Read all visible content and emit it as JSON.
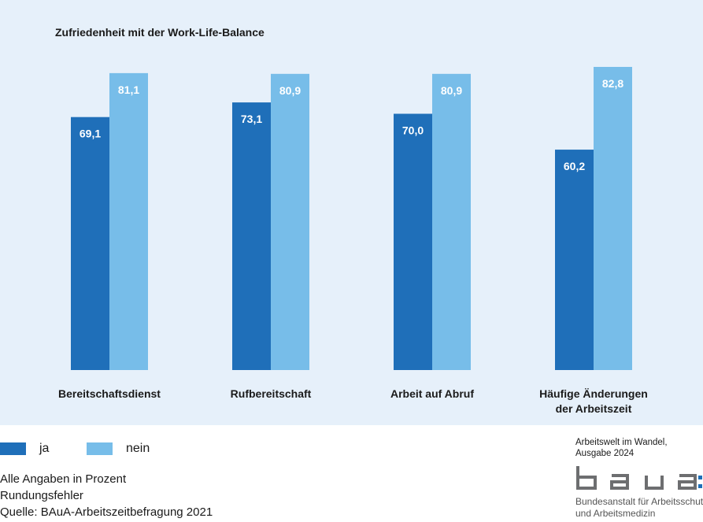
{
  "chart_data": {
    "type": "bar",
    "title": "Zufriedenheit mit der Work-Life-Balance",
    "categories": [
      "Bereitschaftsdienst",
      "Rufbereitschaft",
      "Arbeit auf Abruf",
      "Häufige Änderungen der Arbeitszeit"
    ],
    "category_lines": [
      [
        "Bereitschaftsdienst"
      ],
      [
        "Rufbereitschaft"
      ],
      [
        "Arbeit auf Abruf"
      ],
      [
        "Häufige Änderungen",
        "der Arbeitszeit"
      ]
    ],
    "series": [
      {
        "name": "ja",
        "values": [
          69.1,
          73.1,
          70.0,
          60.2
        ],
        "labels": [
          "69,1",
          "73,1",
          "70,0",
          "60,2"
        ],
        "color": "#1f6fb9"
      },
      {
        "name": "nein",
        "values": [
          81.1,
          80.9,
          80.9,
          82.8
        ],
        "labels": [
          "81,1",
          "80,9",
          "80,9",
          "82,8"
        ],
        "color": "#77bde9"
      }
    ],
    "ylim": [
      0,
      100
    ],
    "grid": false,
    "legend": "bottom-left",
    "xlabel": "",
    "ylabel": ""
  },
  "notes": [
    "Alle Angaben in Prozent",
    "Rundungsfehler",
    "Quelle: BAuA-Arbeitszeitbefragung 2021"
  ],
  "publication": [
    "Arbeitswelt im Wandel,",
    "Ausgabe 2024"
  ],
  "logo": {
    "text": "baua:",
    "subtitle_1": "Bundesanstalt für Arbeitsschutz",
    "subtitle_2": "und Arbeitsmedizin"
  },
  "colors": {
    "panel": "#e6f0fa",
    "logo_gray": "#6d6e70",
    "logo_dots": "#1f6fb9"
  }
}
